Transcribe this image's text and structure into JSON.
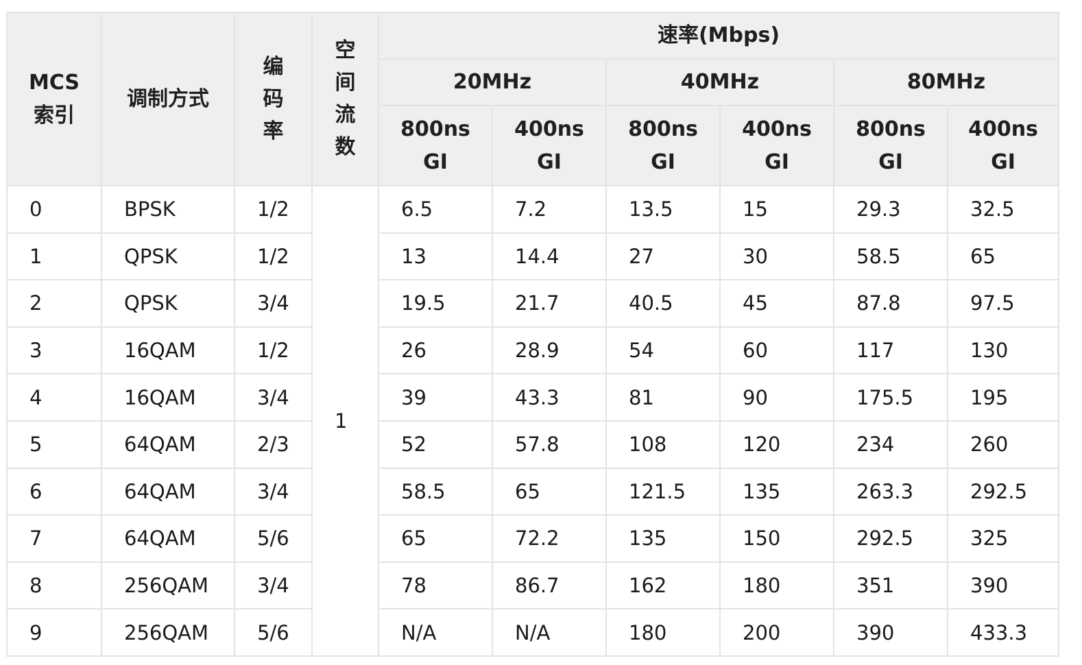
{
  "header": {
    "mcs": [
      "MCS",
      "索引"
    ],
    "modulation": "调制方式",
    "code_rate": [
      "编",
      "码",
      "率"
    ],
    "spatial_streams": [
      "空",
      "间",
      "流",
      "数"
    ],
    "rate": "速率(Mbps)",
    "bandwidths": [
      "20MHz",
      "40MHz",
      "80MHz"
    ],
    "gi": [
      [
        "800ns",
        "GI"
      ],
      [
        "400ns",
        "GI"
      ],
      [
        "800ns",
        "GI"
      ],
      [
        "400ns",
        "GI"
      ],
      [
        "800ns",
        "GI"
      ],
      [
        "400ns",
        "GI"
      ]
    ]
  },
  "spatial_stream_value": "1",
  "rows": [
    {
      "mcs": "0",
      "modulation": "BPSK",
      "code_rate": "1/2",
      "r": [
        "6.5",
        "7.2",
        "13.5",
        "15",
        "29.3",
        "32.5"
      ]
    },
    {
      "mcs": "1",
      "modulation": "QPSK",
      "code_rate": "1/2",
      "r": [
        "13",
        "14.4",
        "27",
        "30",
        "58.5",
        "65"
      ]
    },
    {
      "mcs": "2",
      "modulation": "QPSK",
      "code_rate": "3/4",
      "r": [
        "19.5",
        "21.7",
        "40.5",
        "45",
        "87.8",
        "97.5"
      ]
    },
    {
      "mcs": "3",
      "modulation": "16QAM",
      "code_rate": "1/2",
      "r": [
        "26",
        "28.9",
        "54",
        "60",
        "117",
        "130"
      ]
    },
    {
      "mcs": "4",
      "modulation": "16QAM",
      "code_rate": "3/4",
      "r": [
        "39",
        "43.3",
        "81",
        "90",
        "175.5",
        "195"
      ]
    },
    {
      "mcs": "5",
      "modulation": "64QAM",
      "code_rate": "2/3",
      "r": [
        "52",
        "57.8",
        "108",
        "120",
        "234",
        "260"
      ]
    },
    {
      "mcs": "6",
      "modulation": "64QAM",
      "code_rate": "3/4",
      "r": [
        "58.5",
        "65",
        "121.5",
        "135",
        "263.3",
        "292.5"
      ]
    },
    {
      "mcs": "7",
      "modulation": "64QAM",
      "code_rate": "5/6",
      "r": [
        "65",
        "72.2",
        "135",
        "150",
        "292.5",
        "325"
      ]
    },
    {
      "mcs": "8",
      "modulation": "256QAM",
      "code_rate": "3/4",
      "r": [
        "78",
        "86.7",
        "162",
        "180",
        "351",
        "390"
      ]
    },
    {
      "mcs": "9",
      "modulation": "256QAM",
      "code_rate": "5/6",
      "r": [
        "N/A",
        "N/A",
        "180",
        "200",
        "390",
        "433.3"
      ]
    }
  ]
}
